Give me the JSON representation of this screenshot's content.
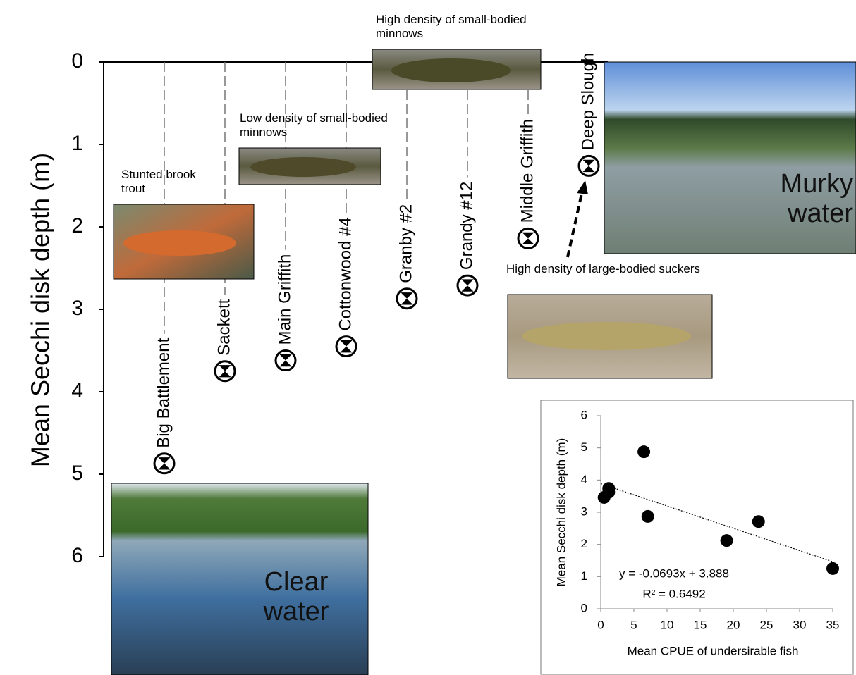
{
  "chart_data": [
    {
      "type": "dot",
      "ylabel": "Mean Secchi disk depth (m)",
      "categories": [
        "Big Battlement",
        "Sackett",
        "Main Griffith",
        "Cottonwood #4",
        "Granby #2",
        "Grandy #12",
        "Middle Griffith",
        "Deep Slough"
      ],
      "values": [
        4.87,
        3.75,
        3.62,
        3.45,
        2.87,
        2.71,
        2.14,
        1.26
      ],
      "ylim": [
        0,
        6
      ],
      "yticks": [
        0,
        1,
        2,
        3,
        4,
        5,
        6
      ],
      "y_inverted": true,
      "color": "#000000",
      "annotations": [
        "Stunted brook trout",
        "Low density of small-bodied minnows",
        "High density of small-bodied minnows",
        "High density of large-bodied suckers",
        "Murky water",
        "Clear water"
      ]
    },
    {
      "type": "scatter",
      "xlabel": "Mean CPUE of undersirable fish",
      "ylabel": "Mean Secchi disk depth (m)",
      "x": [
        0.5,
        1.2,
        1.2,
        6.5,
        7.1,
        19,
        23.8,
        35
      ],
      "values": [
        3.46,
        3.62,
        3.74,
        4.88,
        2.87,
        2.12,
        2.71,
        1.25
      ],
      "xlim": [
        0,
        35
      ],
      "xticks": [
        0,
        5,
        10,
        15,
        20,
        25,
        30,
        35
      ],
      "ylim": [
        0,
        6
      ],
      "yticks": [
        0,
        1,
        2,
        3,
        4,
        5,
        6
      ],
      "color": "#000000",
      "trendline": {
        "slope": -0.0693,
        "intercept": 3.888,
        "label": "y = -0.0693x + 3.888"
      },
      "r2_label": "R² = 0.6492"
    }
  ]
}
